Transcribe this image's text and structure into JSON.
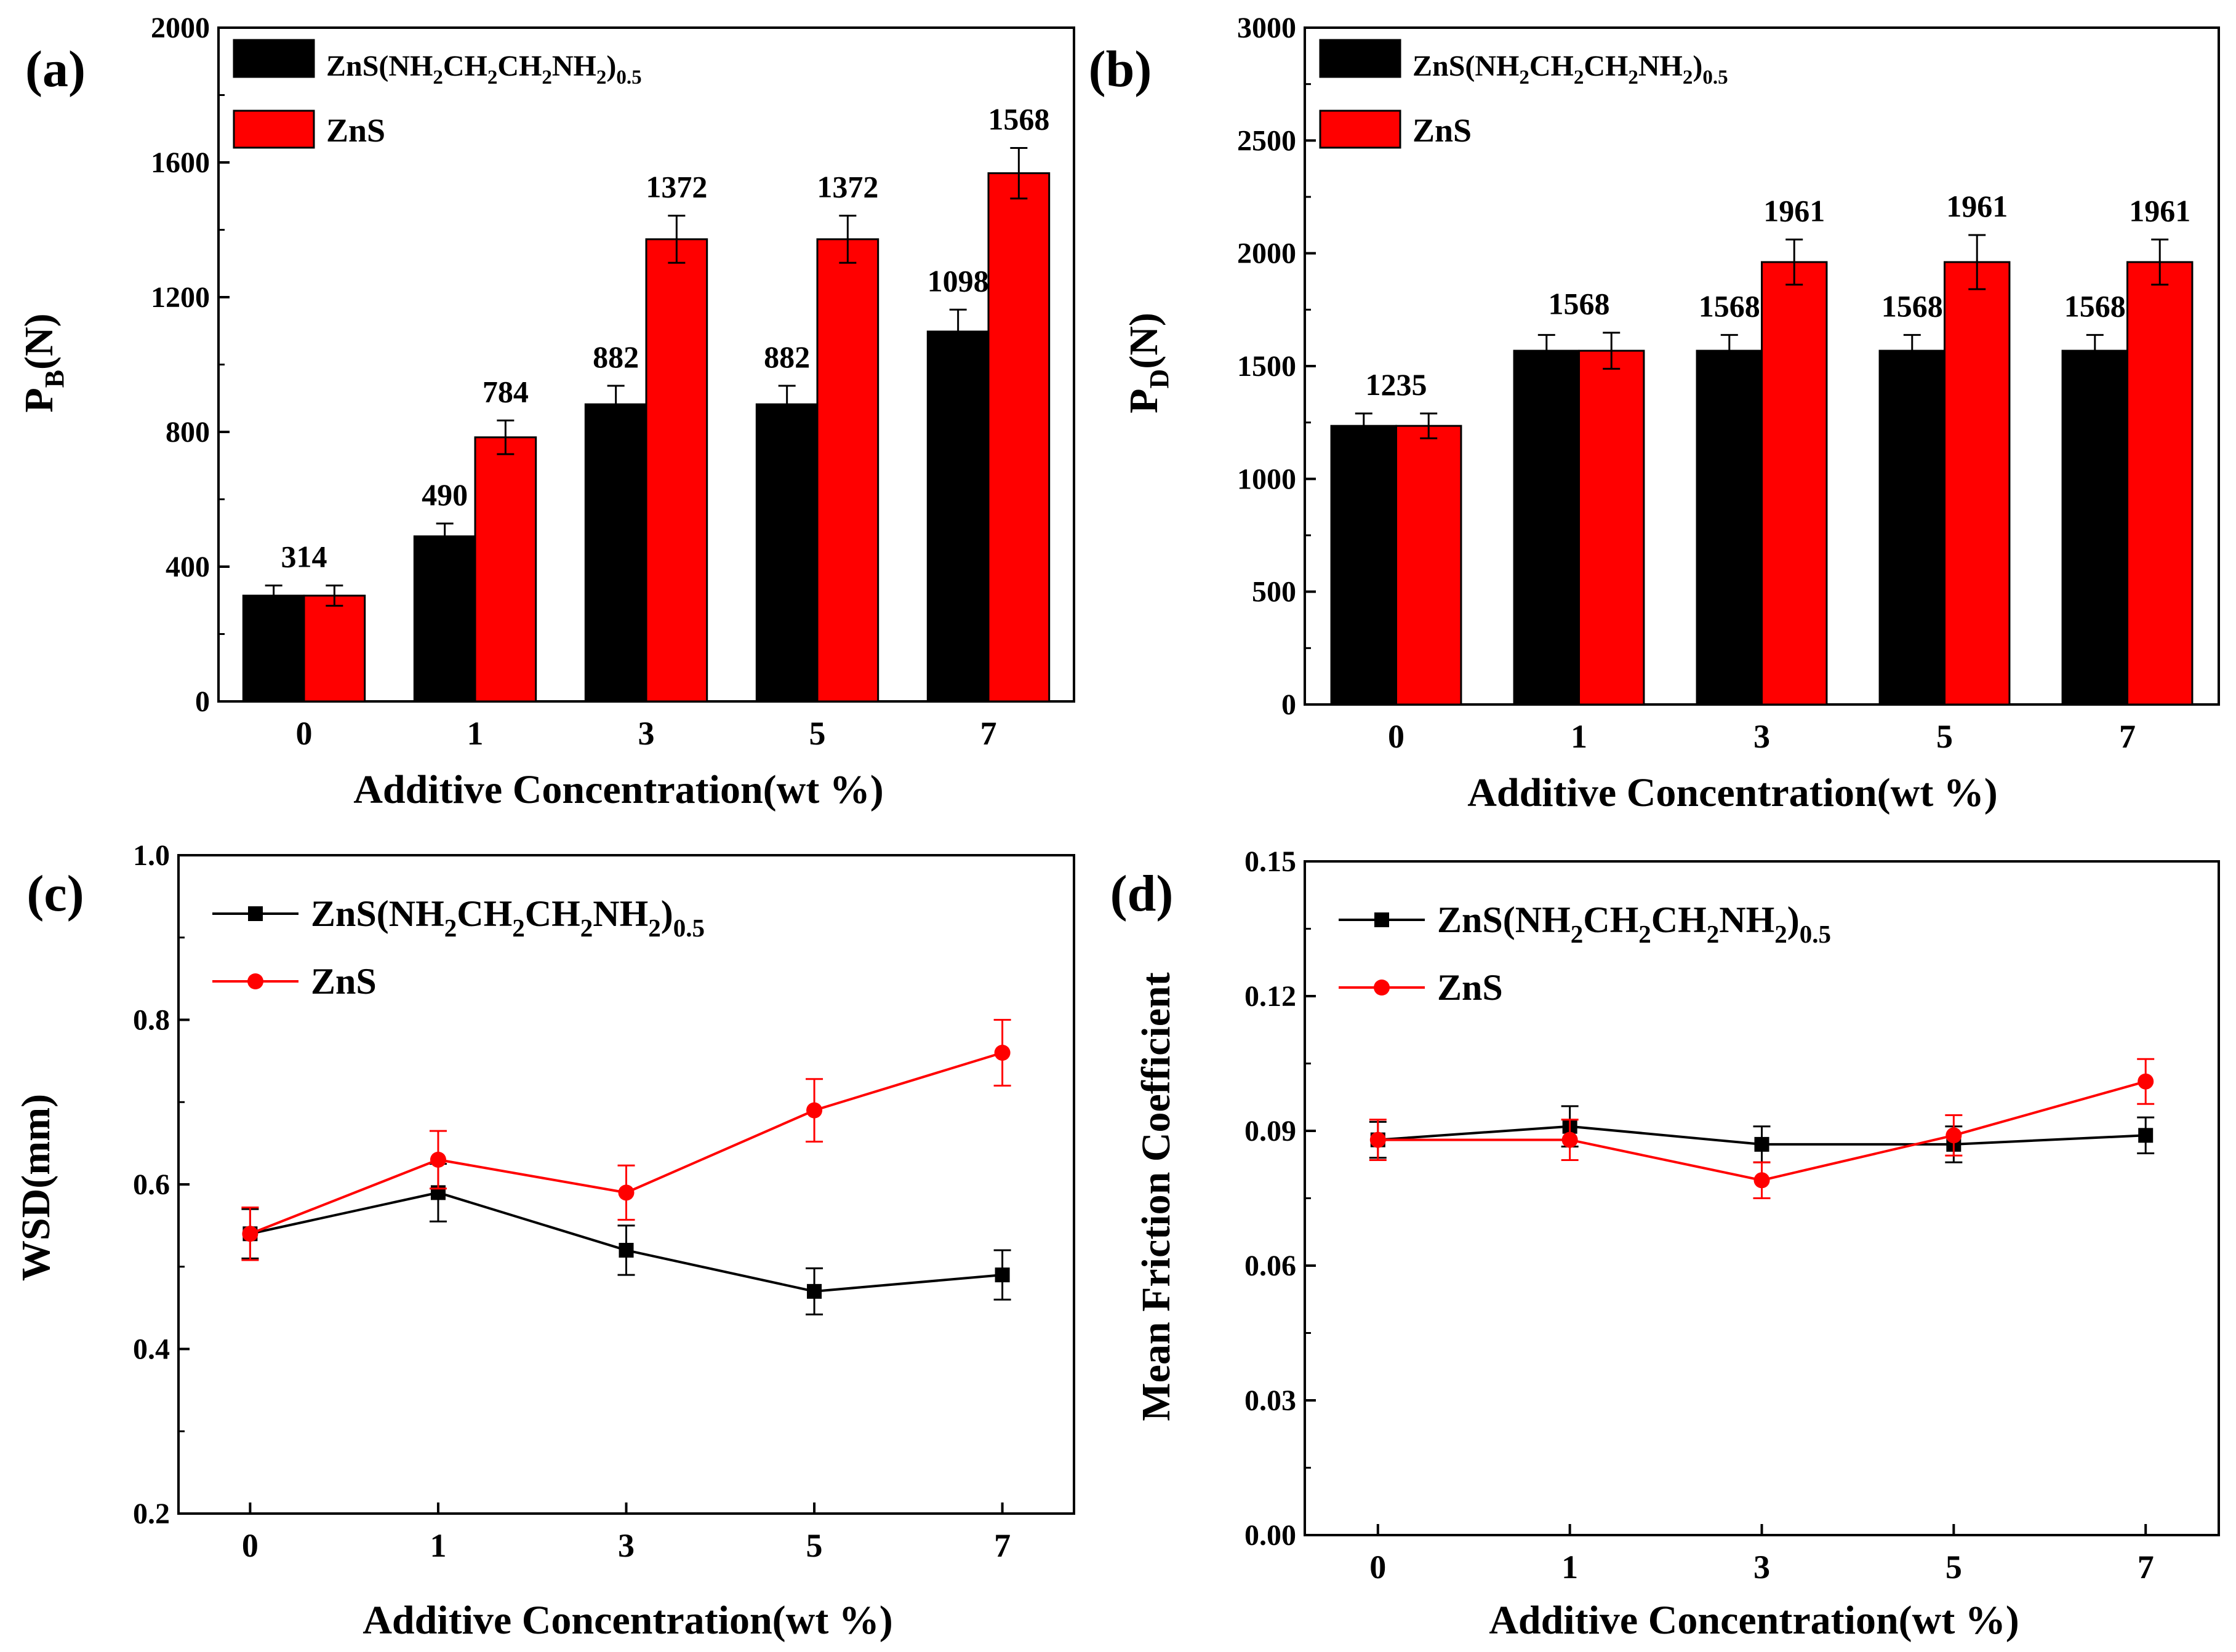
{
  "chart_data": [
    {
      "panel_label": "(a)",
      "type": "bar",
      "title": "",
      "xlabel": "Additive Concentration(wt %)",
      "ylabel_main": "P",
      "ylabel_sub": "B",
      "ylabel_unit": "(N)",
      "ylim": [
        0,
        2000
      ],
      "yticks": [
        "0",
        "400",
        "800",
        "1200",
        "1600",
        "2000"
      ],
      "categories": [
        "0",
        "1",
        "3",
        "5",
        "7"
      ],
      "legend_position": "top-left",
      "series": [
        {
          "name_main": "ZnS(NH",
          "name_parts": [
            "2",
            "CH",
            "2",
            "CH",
            "2",
            "NH",
            "2",
            ")",
            "0.5"
          ],
          "name": "ZnS(NH2CH2CH2NH2)0.5",
          "color": "#000000",
          "values": [
            314,
            490,
            882,
            882,
            1098
          ],
          "errors": [
            30,
            38,
            55,
            55,
            65
          ]
        },
        {
          "name": "ZnS",
          "color": "#ff0000",
          "values": [
            314,
            784,
            1372,
            1372,
            1568
          ],
          "errors": [
            30,
            50,
            70,
            70,
            75
          ]
        }
      ],
      "data_labels": [
        "314",
        "490",
        "784",
        "882",
        "1372",
        "882",
        "1372",
        "1098",
        "1568"
      ]
    },
    {
      "panel_label": "(b)",
      "type": "bar",
      "title": "",
      "xlabel": "Additive Concentration(wt %)",
      "ylabel_main": "P",
      "ylabel_sub": "D",
      "ylabel_unit": "(N)",
      "ylim": [
        0,
        3000
      ],
      "yticks": [
        "0",
        "500",
        "1000",
        "1500",
        "2000",
        "2500",
        "3000"
      ],
      "categories": [
        "0",
        "1",
        "3",
        "5",
        "7"
      ],
      "legend_position": "top-left",
      "series": [
        {
          "name": "ZnS(NH2CH2CH2NH2)0.5",
          "color": "#000000",
          "values": [
            1235,
            1568,
            1568,
            1568,
            1568
          ],
          "errors": [
            55,
            70,
            70,
            70,
            70
          ]
        },
        {
          "name": "ZnS",
          "color": "#ff0000",
          "values": [
            1235,
            1568,
            1961,
            1961,
            1961
          ],
          "errors": [
            55,
            80,
            100,
            120,
            100
          ]
        }
      ],
      "data_labels": [
        "1235",
        "1568",
        "1568",
        "1961",
        "1568",
        "1961",
        "1568",
        "1961"
      ]
    },
    {
      "panel_label": "(c)",
      "type": "line",
      "title": "",
      "xlabel": "Additive Concentration(wt %)",
      "ylabel": "WSD(mm)",
      "ylim": [
        0.2,
        1.0
      ],
      "yticks": [
        "0.2",
        "0.4",
        "0.6",
        "0.8",
        "1.0"
      ],
      "categories": [
        "0",
        "1",
        "3",
        "5",
        "7"
      ],
      "legend_position": "top-left",
      "series": [
        {
          "name": "ZnS(NH2CH2CH2NH2)0.5",
          "color": "#000000",
          "marker": "square",
          "values": [
            0.54,
            0.59,
            0.52,
            0.47,
            0.49
          ],
          "errors": [
            0.03,
            0.035,
            0.03,
            0.028,
            0.03
          ]
        },
        {
          "name": "ZnS",
          "color": "#ff0000",
          "marker": "circle",
          "values": [
            0.54,
            0.63,
            0.59,
            0.69,
            0.76
          ],
          "errors": [
            0.032,
            0.035,
            0.033,
            0.038,
            0.04
          ]
        }
      ]
    },
    {
      "panel_label": "(d)",
      "type": "line",
      "title": "",
      "xlabel": "Additive Concentration(wt %)",
      "ylabel": "Mean Friction Coefficient",
      "ylim": [
        0.0,
        0.15
      ],
      "yticks": [
        "0.00",
        "0.03",
        "0.06",
        "0.09",
        "0.12",
        "0.15"
      ],
      "categories": [
        "0",
        "1",
        "3",
        "5",
        "7"
      ],
      "legend_position": "top-left",
      "series": [
        {
          "name": "ZnS(NH2CH2CH2NH2)0.5",
          "color": "#000000",
          "marker": "square",
          "values": [
            0.088,
            0.091,
            0.087,
            0.087,
            0.089
          ],
          "errors": [
            0.004,
            0.0045,
            0.004,
            0.004,
            0.004
          ]
        },
        {
          "name": "ZnS",
          "color": "#ff0000",
          "marker": "circle",
          "values": [
            0.088,
            0.088,
            0.079,
            0.089,
            0.101
          ],
          "errors": [
            0.0045,
            0.0045,
            0.004,
            0.0045,
            0.005
          ]
        }
      ]
    }
  ]
}
